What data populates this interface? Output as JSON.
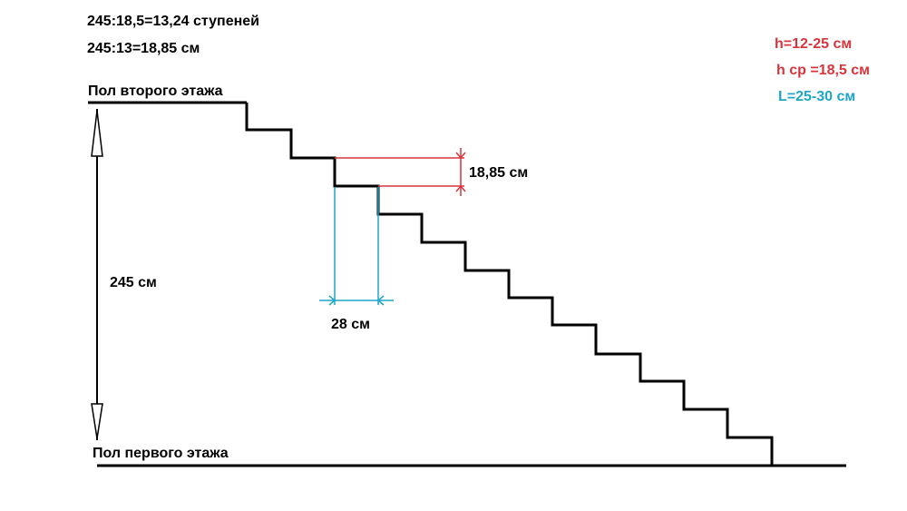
{
  "formulas": {
    "steps_count": "245:18,5=13,24 ступеней",
    "step_height": "245:13=18,85 см"
  },
  "floors": {
    "upper": "Пол второго этажа",
    "lower": "Пол первого этажа"
  },
  "dimensions": {
    "total_height": "245 см",
    "riser": "18,85 см",
    "tread": "28 см"
  },
  "norms": {
    "riser_range": "h=12-25 см",
    "riser_avg": "h ср =18,5 см",
    "tread_range": "L=25-30 см"
  },
  "colors": {
    "line": "#000000",
    "riser_dimension": "#d9343c",
    "tread_dimension": "#1ea6c8",
    "text": "#000000"
  }
}
